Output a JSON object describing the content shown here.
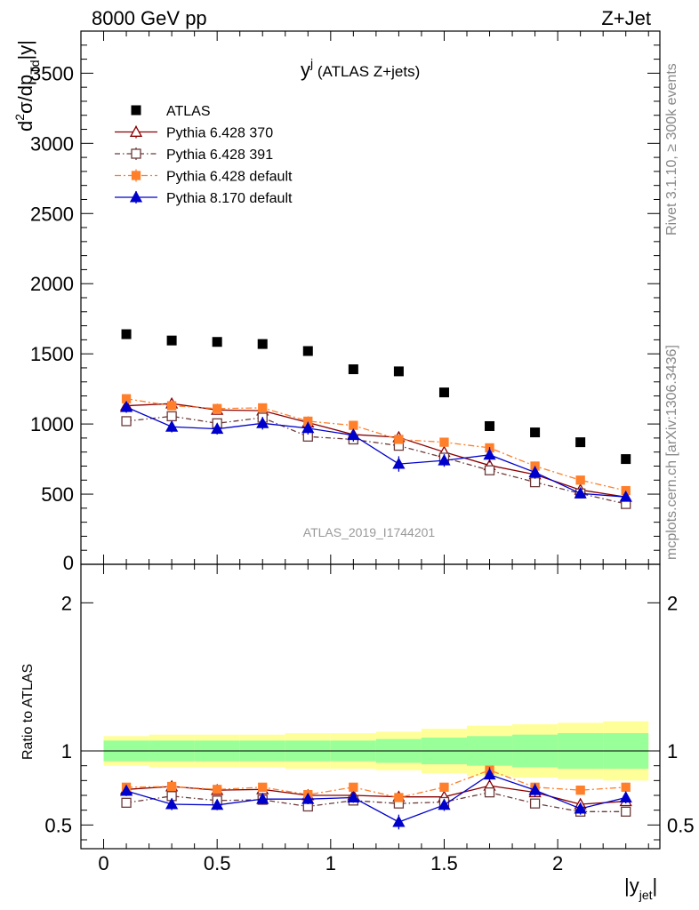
{
  "header": {
    "left": "8000 GeV pp",
    "right": "Z+Jet"
  },
  "side_labels": {
    "rivet": "Rivet 3.1.10, ≥ 300k events",
    "mcplots": "mcplots.cern.ch [arXiv:1306.3436]"
  },
  "chart_data": {
    "type": "scatter",
    "title": "y^j (ATLAS Z+jets)",
    "title_main": "y",
    "title_sup": "j",
    "title_rest": " (ATLAS Z+jets)",
    "analysis_tag": "ATLAS_2019_I1744201",
    "xlabel": "|y_jet|",
    "xlabel_main": "|y",
    "xlabel_sub": "jet",
    "xlabel_end": "|",
    "ylabel": "d²σ/dp_Td|y|",
    "ratio_ylabel": "Ratio to ATLAS",
    "xlim": [
      -0.1,
      2.45
    ],
    "ylim": [
      0,
      3800
    ],
    "ratio_ylim": [
      0.34,
      2.26
    ],
    "x_ticks": [
      "0",
      "0.5",
      "1",
      "1.5",
      "2"
    ],
    "y_ticks": [
      "0",
      "500",
      "1000",
      "1500",
      "2000",
      "2500",
      "3000",
      "3500"
    ],
    "ratio_ticks": [
      "0.5",
      "1",
      "2"
    ],
    "legend_position": "top-left",
    "x": [
      0.1,
      0.3,
      0.5,
      0.7,
      0.9,
      1.1,
      1.3,
      1.5,
      1.7,
      1.9,
      2.1,
      2.3
    ],
    "bin_edges": [
      0.0,
      0.2,
      0.4,
      0.6,
      0.8,
      1.0,
      1.2,
      1.4,
      1.6,
      1.8,
      2.0,
      2.2,
      2.4
    ],
    "data": {
      "name": "ATLAS",
      "values": [
        1640,
        1595,
        1585,
        1570,
        1520,
        1390,
        1375,
        1225,
        985,
        940,
        870,
        750
      ],
      "band_inner": [
        0.07,
        0.07,
        0.07,
        0.07,
        0.07,
        0.07,
        0.08,
        0.09,
        0.1,
        0.11,
        0.12,
        0.12
      ],
      "band_outer": [
        0.1,
        0.11,
        0.11,
        0.11,
        0.12,
        0.12,
        0.13,
        0.15,
        0.17,
        0.18,
        0.19,
        0.2
      ]
    },
    "series": [
      {
        "name": "Pythia 6.428 370",
        "color": "#8b0000",
        "marker": "triangle-open",
        "dash": "",
        "values": [
          1130,
          1145,
          1100,
          1095,
          1010,
          925,
          905,
          800,
          705,
          640,
          530,
          480
        ],
        "errors": [
          20,
          20,
          20,
          20,
          20,
          20,
          20,
          20,
          20,
          20,
          20,
          20
        ],
        "ratio": [
          0.74,
          0.76,
          0.735,
          0.74,
          0.7,
          0.7,
          0.69,
          0.69,
          0.765,
          0.72,
          0.64,
          0.66
        ],
        "ratio_err": [
          0.02,
          0.02,
          0.02,
          0.02,
          0.02,
          0.02,
          0.02,
          0.02,
          0.03,
          0.03,
          0.03,
          0.03
        ]
      },
      {
        "name": "Pythia 6.428 391",
        "color": "#6b3a3a",
        "marker": "square-open",
        "dash": "6,3,1.5,3",
        "values": [
          1020,
          1055,
          1005,
          1045,
          910,
          890,
          845,
          760,
          670,
          585,
          505,
          430
        ],
        "errors": [
          20,
          20,
          20,
          20,
          20,
          20,
          20,
          20,
          20,
          20,
          20,
          20
        ],
        "ratio": [
          0.65,
          0.695,
          0.665,
          0.67,
          0.625,
          0.665,
          0.645,
          0.655,
          0.72,
          0.645,
          0.59,
          0.59
        ],
        "ratio_err": [
          0.02,
          0.02,
          0.02,
          0.02,
          0.02,
          0.02,
          0.02,
          0.02,
          0.03,
          0.03,
          0.03,
          0.03
        ]
      },
      {
        "name": "Pythia 6.428 default",
        "color": "#ff7f2a",
        "marker": "square-filled",
        "dash": "7,3,2,3",
        "values": [
          1180,
          1130,
          1110,
          1115,
          1020,
          990,
          890,
          870,
          830,
          700,
          600,
          525
        ],
        "errors": [
          20,
          20,
          20,
          20,
          20,
          20,
          20,
          20,
          20,
          20,
          20,
          20
        ],
        "ratio": [
          0.755,
          0.76,
          0.74,
          0.755,
          0.705,
          0.755,
          0.685,
          0.755,
          0.87,
          0.755,
          0.735,
          0.755
        ],
        "ratio_err": [
          0.02,
          0.02,
          0.02,
          0.02,
          0.02,
          0.02,
          0.02,
          0.02,
          0.03,
          0.03,
          0.03,
          0.03
        ]
      },
      {
        "name": "Pythia 8.170 default",
        "color": "#0000cc",
        "marker": "triangle-filled",
        "dash": "",
        "values": [
          1120,
          980,
          965,
          1005,
          970,
          920,
          715,
          740,
          780,
          655,
          505,
          480
        ],
        "errors": [
          40,
          40,
          40,
          45,
          45,
          45,
          55,
          45,
          55,
          45,
          35,
          30
        ],
        "ratio": [
          0.73,
          0.64,
          0.635,
          0.675,
          0.675,
          0.685,
          0.52,
          0.635,
          0.84,
          0.735,
          0.61,
          0.685
        ],
        "ratio_err": [
          0.035,
          0.04,
          0.035,
          0.035,
          0.035,
          0.035,
          0.05,
          0.04,
          0.05,
          0.045,
          0.04,
          0.04
        ]
      }
    ]
  },
  "colors": {
    "band_inner": "#99ff99",
    "band_outer": "#ffff99",
    "data_marker": "#000000",
    "tag_text": "#999999"
  }
}
